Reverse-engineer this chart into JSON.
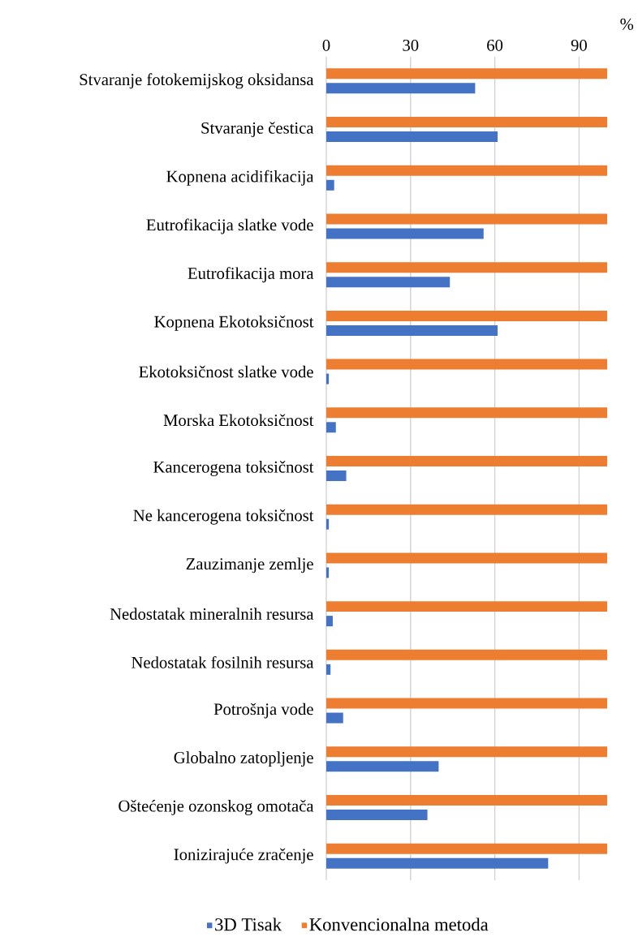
{
  "chart_data": {
    "type": "bar",
    "orientation": "horizontal",
    "xlabel": "%",
    "categories": [
      "Stvaranje fotokemijskog oksidansa",
      "Stvaranje čestica",
      "Kopnena acidifikacija",
      "Eutrofikacija slatke vode",
      "Eutrofikacija mora",
      "Kopnena Ekotoksičnost",
      "Ekotoksičnost slatke vode",
      "Morska Ekotoksičnost",
      "Kancerogena toksičnost",
      "Ne kancerogena toksičnost",
      "Zauzimanje zemlje",
      "Nedostatak mineralnih resursa",
      "Nedostatak fosilnih resursa",
      "Potrošnja vode",
      "Globalno zatopljenje",
      "Oštećenje ozonskog omotača",
      "Ionizirajuće zračenje"
    ],
    "series": [
      {
        "name": "3D Tisak",
        "color": "#4472c4",
        "values": [
          53,
          61,
          2.8,
          56,
          44,
          61,
          0.9,
          3.4,
          7.1,
          0.9,
          0.9,
          2.3,
          1.5,
          6,
          40,
          36,
          79
        ]
      },
      {
        "name": "Konvencionalna metoda",
        "color": "#ed7d31",
        "values": [
          100,
          100,
          100,
          100,
          100,
          100,
          100,
          100,
          100,
          100,
          100,
          100,
          100,
          100,
          100,
          100,
          100
        ]
      }
    ],
    "xlim": [
      0,
      100
    ],
    "xticks": [
      0,
      30,
      60,
      90
    ],
    "grid": "x",
    "legend": "bottom"
  }
}
